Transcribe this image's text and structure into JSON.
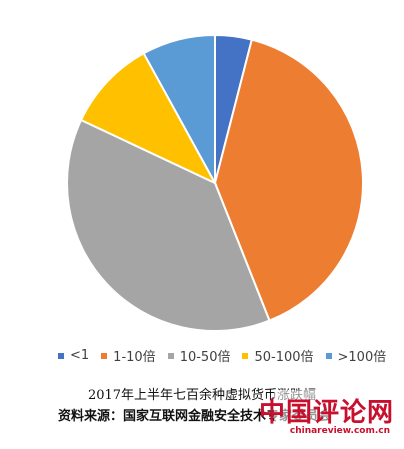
{
  "chart_data": {
    "type": "pie",
    "title": "",
    "categories": [
      "<1",
      "1-10倍",
      "10-50倍",
      "50-100倍",
      ">100倍"
    ],
    "values": [
      4,
      40,
      38,
      10,
      8
    ],
    "colors": [
      "#4472c4",
      "#ed7d31",
      "#a5a5a5",
      "#ffc000",
      "#5b9bd5"
    ],
    "start_angle_deg": 0,
    "direction": "clockwise",
    "legend_position": "bottom"
  },
  "captions": {
    "line1": "2017年上半年七百余种虚拟货币涨跌幅",
    "line2": "资料来源：国家互联网金融安全技术专家委员会"
  },
  "watermark": {
    "text": "中国评论网",
    "url": "chinareview.com.cn"
  }
}
